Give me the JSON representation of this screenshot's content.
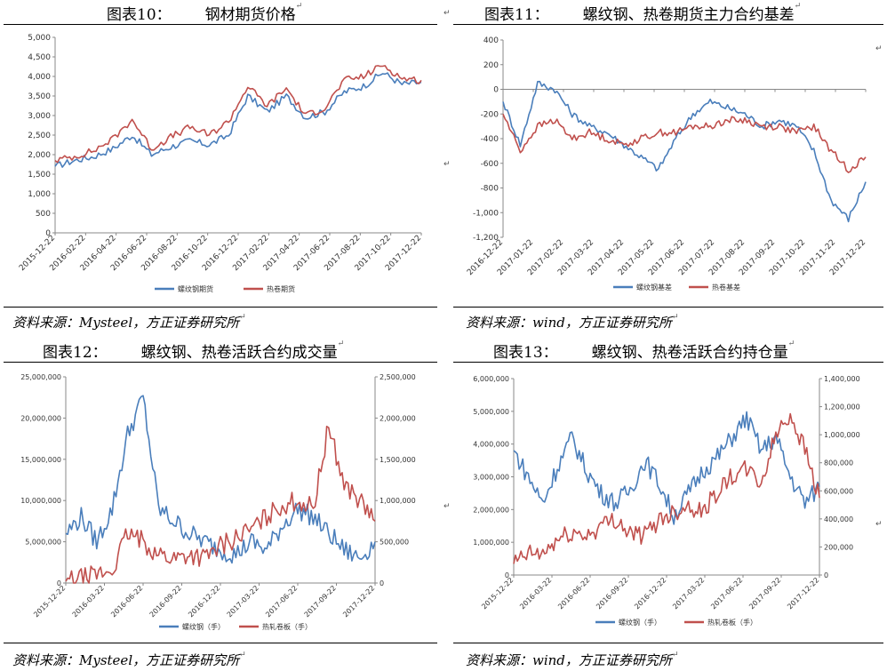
{
  "page": {
    "para_mark": "↵",
    "panels": [
      {
        "num": "图表10：",
        "title": "钢材期货价格",
        "source": "资料来源：Mysteel，方正证券研究所"
      },
      {
        "num": "图表11：",
        "title": "螺纹钢、热卷期货主力合约基差",
        "source": "资料来源：wind，方正证券研究所"
      },
      {
        "num": "图表12：",
        "title": "螺纹钢、热卷活跃合约成交量",
        "source": "资料来源：Mysteel，方正证券研究所"
      },
      {
        "num": "图表13：",
        "title": "螺纹钢、热卷活跃合约持仓量",
        "source": "资料来源：wind，方正证券研究所"
      }
    ]
  },
  "chart_data": [
    {
      "type": "line",
      "ylim": [
        0,
        5000
      ],
      "yticks": [
        "0",
        "500",
        "1,000",
        "1,500",
        "2,000",
        "2,500",
        "3,000",
        "3,500",
        "4,000",
        "4,500",
        "5,000"
      ],
      "xticks": [
        "2015-12-22",
        "2016-02-22",
        "2016-04-22",
        "2016-06-22",
        "2016-08-22",
        "2016-10-22",
        "2016-12-22",
        "2017-02-22",
        "2017-04-22",
        "2017-06-22",
        "2017-08-22",
        "2017-10-22",
        "2017-12-22"
      ],
      "series": [
        {
          "name": "螺纹钢期货",
          "color": "#4a7ebb",
          "values": [
            1700,
            1850,
            1950,
            2150,
            2500,
            2000,
            2200,
            2350,
            2250,
            2500,
            3500,
            3100,
            3500,
            2950,
            3100,
            3600,
            3750,
            4100,
            3800,
            3850
          ]
        },
        {
          "name": "热卷期货",
          "color": "#c0504d",
          "values": [
            1850,
            1950,
            2100,
            2400,
            2900,
            2150,
            2450,
            2700,
            2500,
            2850,
            3750,
            3250,
            3700,
            3000,
            3200,
            3900,
            4000,
            4300,
            3950,
            3900
          ]
        }
      ]
    },
    {
      "type": "line",
      "ylim": [
        -1200,
        400
      ],
      "yticks": [
        "-1,200",
        "-1,000",
        "-800",
        "-600",
        "-400",
        "-200",
        "0",
        "200",
        "400"
      ],
      "xticks": [
        "2016-12-22",
        "2017-01-22",
        "2017-02-22",
        "2017-03-22",
        "2017-04-22",
        "2017-05-22",
        "2017-06-22",
        "2017-07-22",
        "2017-08-22",
        "2017-09-22",
        "2017-10-22",
        "2017-11-22",
        "2017-12-22"
      ],
      "series": [
        {
          "name": "螺纹钢基差",
          "color": "#4a7ebb",
          "values": [
            -100,
            -450,
            50,
            0,
            -200,
            -300,
            -350,
            -450,
            -550,
            -650,
            -400,
            -200,
            -100,
            -150,
            -200,
            -300,
            -250,
            -300,
            -500,
            -900,
            -1050,
            -750
          ]
        },
        {
          "name": "热卷基差",
          "color": "#c0504d",
          "values": [
            -200,
            -500,
            -300,
            -250,
            -400,
            -350,
            -400,
            -450,
            -400,
            -350,
            -350,
            -300,
            -300,
            -250,
            -250,
            -300,
            -300,
            -350,
            -300,
            -500,
            -650,
            -550
          ]
        }
      ]
    },
    {
      "type": "line",
      "ylim": [
        0,
        25000000
      ],
      "yticks": [
        "0",
        "5,000,000",
        "10,000,000",
        "15,000,000",
        "20,000,000",
        "25,000,000"
      ],
      "y2lim": [
        0,
        2500000
      ],
      "y2ticks": [
        "0",
        "500,000",
        "1,000,000",
        "1,500,000",
        "2,000,000",
        "2,500,000"
      ],
      "xticks": [
        "2015-12-22",
        "2016-03-22",
        "2016-06-22",
        "2016-09-22",
        "2016-12-22",
        "2017-03-22",
        "2017-06-22",
        "2017-09-22",
        "2017-12-22"
      ],
      "series": [
        {
          "name": "螺纹钢（手）",
          "color": "#4a7ebb",
          "axis": "left",
          "values": [
            6000000,
            8000000,
            5000000,
            9000000,
            18000000,
            22500000,
            9000000,
            7500000,
            6000000,
            5000000,
            4000000,
            3500000,
            5000000,
            4000000,
            7000000,
            9000000,
            8000000,
            6000000,
            4000000,
            3000000,
            5000000
          ]
        },
        {
          "name": "热轧卷板（手）",
          "color": "#c0504d",
          "axis": "right",
          "values": [
            20000,
            50000,
            100000,
            150000,
            600000,
            500000,
            350000,
            300000,
            350000,
            300000,
            450000,
            550000,
            650000,
            800000,
            950000,
            1000000,
            900000,
            1900000,
            1200000,
            1000000,
            750000
          ]
        }
      ]
    },
    {
      "type": "line",
      "ylim": [
        0,
        6000000
      ],
      "yticks": [
        "0",
        "1,000,000",
        "2,000,000",
        "3,000,000",
        "4,000,000",
        "5,000,000",
        "6,000,000"
      ],
      "y2lim": [
        0,
        1400000
      ],
      "y2ticks": [
        "0",
        "200,000",
        "400,000",
        "600,000",
        "800,000",
        "1,000,000",
        "1,200,000",
        "1,400,000"
      ],
      "xticks": [
        "2015-12-22",
        "2016-03-22",
        "2016-06-22",
        "2016-09-22",
        "2016-12-22",
        "2017-03-22",
        "2017-06-22",
        "2017-09-22",
        "2017-12-22"
      ],
      "series": [
        {
          "name": "螺纹钢（手）",
          "color": "#4a7ebb",
          "axis": "left",
          "values": [
            3800000,
            3000000,
            2200000,
            3300000,
            4200000,
            3200000,
            2500000,
            2200000,
            2600000,
            3500000,
            2800000,
            1800000,
            2500000,
            3200000,
            3600000,
            4200000,
            4800000,
            3800000,
            4200000,
            3000000,
            2200000,
            2700000
          ]
        },
        {
          "name": "热轧卷板（手）",
          "color": "#c0504d",
          "axis": "right",
          "values": [
            80000,
            150000,
            150000,
            250000,
            300000,
            280000,
            350000,
            400000,
            300000,
            280000,
            400000,
            450000,
            500000,
            450000,
            600000,
            700000,
            750000,
            650000,
            1000000,
            1150000,
            900000,
            550000
          ]
        }
      ]
    }
  ]
}
